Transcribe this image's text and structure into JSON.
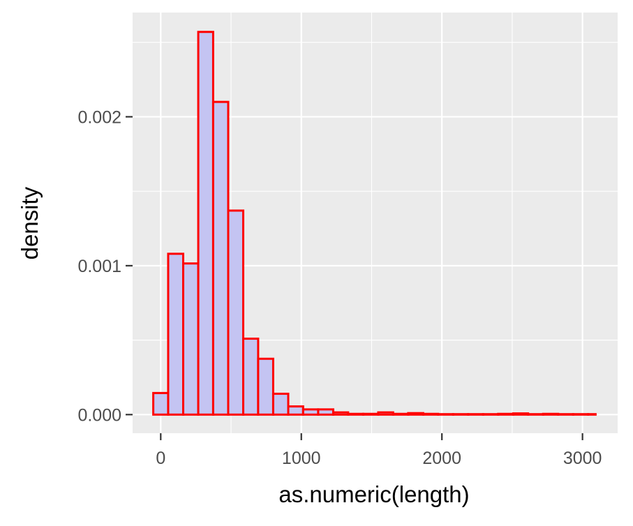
{
  "chart_data": {
    "type": "bar",
    "subtype": "histogram",
    "xlabel": "as.numeric(length)",
    "ylabel": "density",
    "xlim": [
      -200,
      3250
    ],
    "ylim": [
      -0.000125,
      0.0027
    ],
    "x_ticks": [
      0,
      1000,
      2000,
      3000
    ],
    "x_tick_labels": [
      "0",
      "1000",
      "2000",
      "3000"
    ],
    "y_ticks": [
      0.0,
      0.001,
      0.002
    ],
    "y_tick_labels": [
      "0.000",
      "0.001",
      "0.002"
    ],
    "bin_width": 106.7,
    "bins": [
      {
        "x0": -53,
        "x1": 53,
        "density": 0.000145
      },
      {
        "x0": 53,
        "x1": 160,
        "density": 0.00108
      },
      {
        "x0": 160,
        "x1": 267,
        "density": 0.001015
      },
      {
        "x0": 267,
        "x1": 373,
        "density": 0.00257
      },
      {
        "x0": 373,
        "x1": 480,
        "density": 0.0021
      },
      {
        "x0": 480,
        "x1": 587,
        "density": 0.00137
      },
      {
        "x0": 587,
        "x1": 693,
        "density": 0.00051
      },
      {
        "x0": 693,
        "x1": 800,
        "density": 0.000375
      },
      {
        "x0": 800,
        "x1": 907,
        "density": 0.00014
      },
      {
        "x0": 907,
        "x1": 1013,
        "density": 5.5e-05
      },
      {
        "x0": 1013,
        "x1": 1120,
        "density": 3.5e-05
      },
      {
        "x0": 1120,
        "x1": 1227,
        "density": 3.5e-05
      },
      {
        "x0": 1227,
        "x1": 1333,
        "density": 1.5e-05
      },
      {
        "x0": 1333,
        "x1": 1440,
        "density": 5e-06
      },
      {
        "x0": 1440,
        "x1": 1547,
        "density": 5e-06
      },
      {
        "x0": 1547,
        "x1": 1653,
        "density": 1.5e-05
      },
      {
        "x0": 1653,
        "x1": 1760,
        "density": 5e-06
      },
      {
        "x0": 1760,
        "x1": 1867,
        "density": 1e-05
      },
      {
        "x0": 1867,
        "x1": 1973,
        "density": 5e-06
      },
      {
        "x0": 1973,
        "x1": 2080,
        "density": 3e-06
      },
      {
        "x0": 2080,
        "x1": 2187,
        "density": 3e-06
      },
      {
        "x0": 2187,
        "x1": 2293,
        "density": 3e-06
      },
      {
        "x0": 2293,
        "x1": 2400,
        "density": 3e-06
      },
      {
        "x0": 2400,
        "x1": 2507,
        "density": 5e-06
      },
      {
        "x0": 2507,
        "x1": 2613,
        "density": 8e-06
      },
      {
        "x0": 2613,
        "x1": 2720,
        "density": 3e-06
      },
      {
        "x0": 2720,
        "x1": 2827,
        "density": 5e-06
      },
      {
        "x0": 2827,
        "x1": 2933,
        "density": 3e-06
      },
      {
        "x0": 2933,
        "x1": 3040,
        "density": 3e-06
      },
      {
        "x0": 3040,
        "x1": 3093,
        "density": 3e-06
      }
    ],
    "colors": {
      "panel_background": "#ebebeb",
      "grid": "#ffffff",
      "bar_fill": "#c4c4f2",
      "bar_outline": "#ff0000",
      "tick_text": "#4d4d4d",
      "axis_title": "#000000"
    },
    "grid": true,
    "legend": "none"
  }
}
